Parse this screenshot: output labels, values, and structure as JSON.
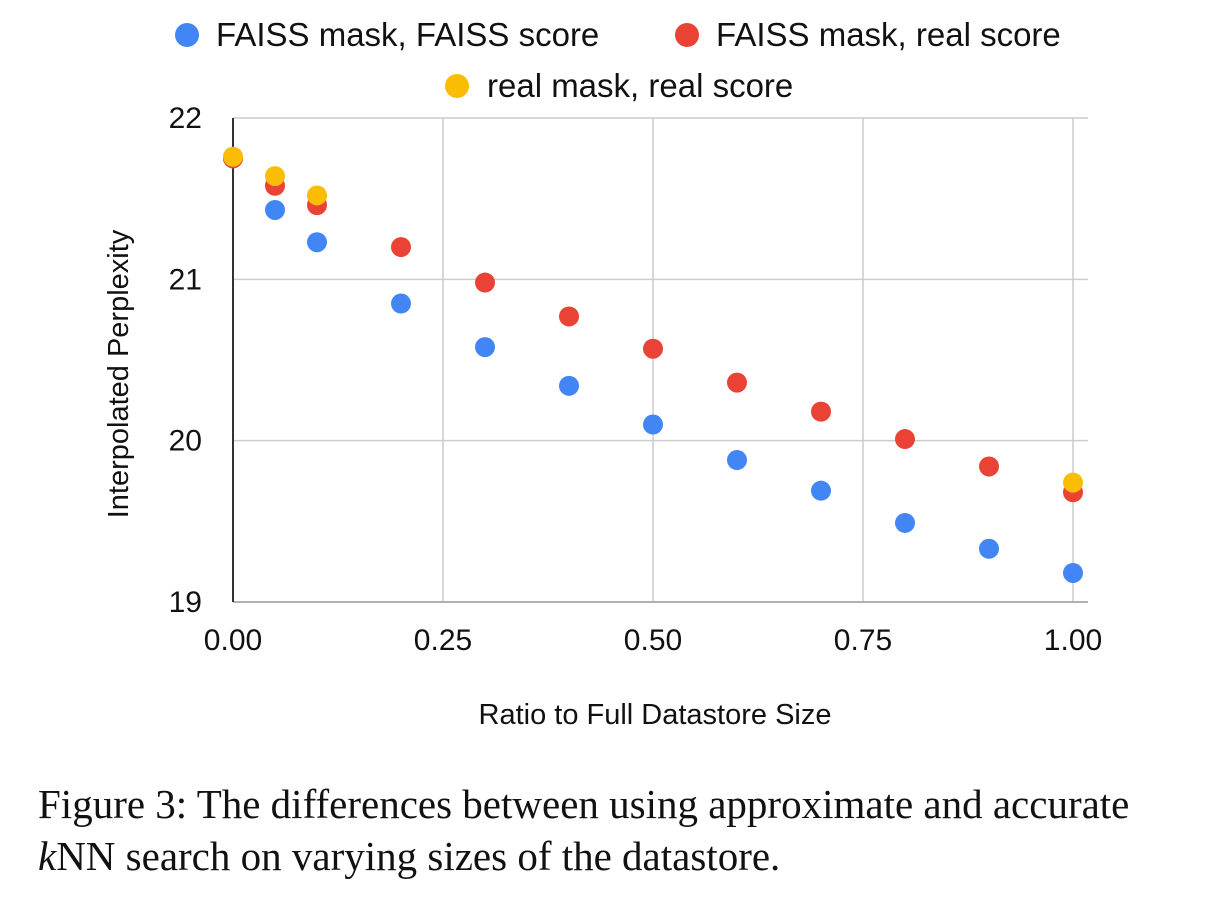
{
  "chart_data": {
    "type": "scatter",
    "xlabel": "Ratio to Full Datastore Size",
    "ylabel": "Interpolated Perplexity",
    "xlim": [
      0,
      1
    ],
    "ylim": [
      19,
      22
    ],
    "xticks": [
      0,
      0.25,
      0.5,
      0.75,
      1.0
    ],
    "xtick_labels": [
      "0.00",
      "0.25",
      "0.50",
      "0.75",
      "1.00"
    ],
    "yticks": [
      19,
      20,
      21,
      22
    ],
    "ytick_labels": [
      "19",
      "20",
      "21",
      "22"
    ],
    "grid": true,
    "legend_position": "top",
    "series": [
      {
        "name": "FAISS mask, FAISS score",
        "color": "#4285F4",
        "points": [
          {
            "x": 0.0,
            "y": 21.75
          },
          {
            "x": 0.05,
            "y": 21.43
          },
          {
            "x": 0.1,
            "y": 21.23
          },
          {
            "x": 0.2,
            "y": 20.85
          },
          {
            "x": 0.3,
            "y": 20.58
          },
          {
            "x": 0.4,
            "y": 20.34
          },
          {
            "x": 0.5,
            "y": 20.1
          },
          {
            "x": 0.6,
            "y": 19.88
          },
          {
            "x": 0.7,
            "y": 19.69
          },
          {
            "x": 0.8,
            "y": 19.49
          },
          {
            "x": 0.9,
            "y": 19.33
          },
          {
            "x": 1.0,
            "y": 19.18
          }
        ]
      },
      {
        "name": "FAISS mask, real score",
        "color": "#EA4335",
        "points": [
          {
            "x": 0.0,
            "y": 21.75
          },
          {
            "x": 0.05,
            "y": 21.58
          },
          {
            "x": 0.1,
            "y": 21.46
          },
          {
            "x": 0.2,
            "y": 21.2
          },
          {
            "x": 0.3,
            "y": 20.98
          },
          {
            "x": 0.4,
            "y": 20.77
          },
          {
            "x": 0.5,
            "y": 20.57
          },
          {
            "x": 0.6,
            "y": 20.36
          },
          {
            "x": 0.7,
            "y": 20.18
          },
          {
            "x": 0.8,
            "y": 20.01
          },
          {
            "x": 0.9,
            "y": 19.84
          },
          {
            "x": 1.0,
            "y": 19.68
          }
        ]
      },
      {
        "name": "real mask, real score",
        "color": "#FBBC04",
        "points": [
          {
            "x": 0.0,
            "y": 21.76
          },
          {
            "x": 0.05,
            "y": 21.64
          },
          {
            "x": 0.1,
            "y": 21.52
          },
          {
            "x": 1.0,
            "y": 19.74
          }
        ]
      }
    ]
  },
  "caption": {
    "prefix": "Figure 3: The differences between using approximate and accurate ",
    "italic": "k",
    "suffix": "NN search on varying sizes of the datastore."
  }
}
